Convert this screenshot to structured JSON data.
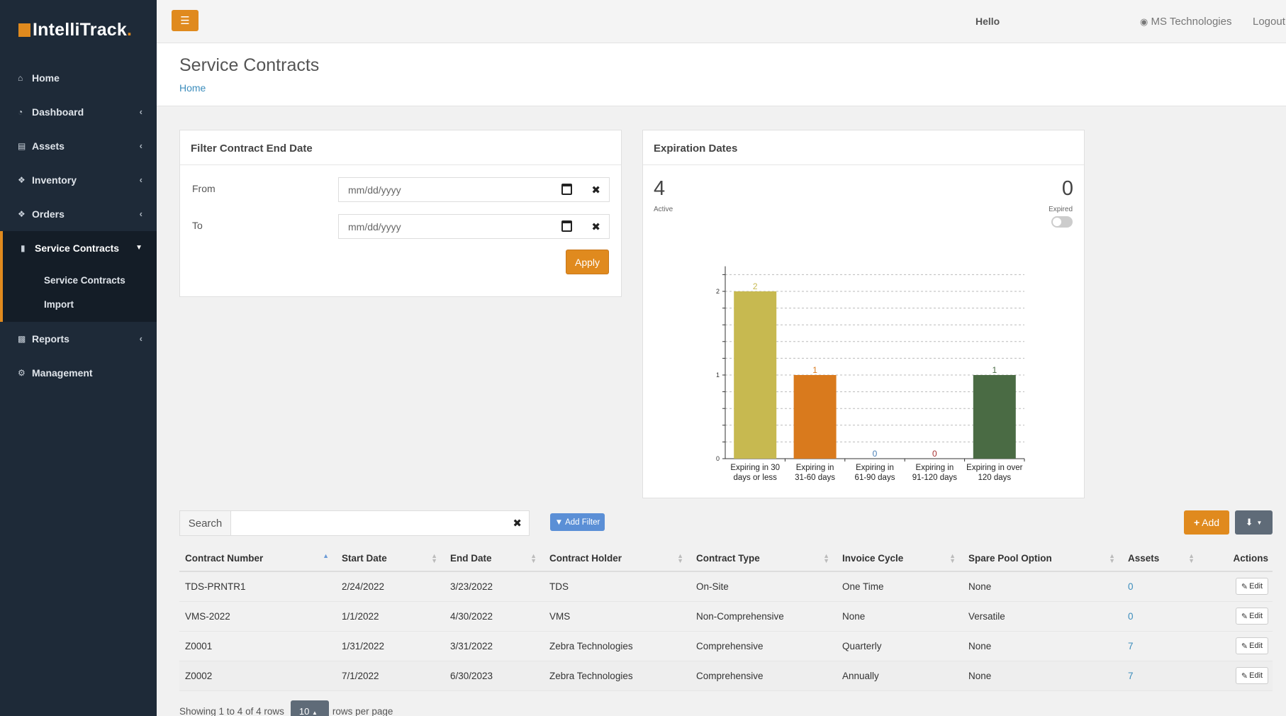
{
  "app": {
    "logo_text": "IntelliTrack",
    "logo_suffix": "."
  },
  "sidebar": {
    "items": [
      {
        "label": "Home",
        "icon": "home-icon",
        "has_chevron": false
      },
      {
        "label": "Dashboard",
        "icon": "dashboard-icon",
        "has_chevron": true
      },
      {
        "label": "Assets",
        "icon": "laptop-icon",
        "has_chevron": true
      },
      {
        "label": "Inventory",
        "icon": "cubes-icon",
        "has_chevron": true
      },
      {
        "label": "Orders",
        "icon": "cubes-icon",
        "has_chevron": true
      },
      {
        "label": "Service Contracts",
        "icon": "book-icon",
        "has_chevron": true,
        "active": true
      },
      {
        "label": "Reports",
        "icon": "bar-chart-icon",
        "has_chevron": true
      },
      {
        "label": "Management",
        "icon": "cogs-icon",
        "has_chevron": false
      }
    ],
    "subitems": [
      {
        "label": "Service Contracts"
      },
      {
        "label": "Import"
      }
    ]
  },
  "topbar": {
    "hello": "Hello",
    "company": "MS Technologies",
    "logout": "Logout"
  },
  "header": {
    "title": "Service Contracts",
    "breadcrumb": "Home"
  },
  "filter": {
    "title": "Filter Contract End Date",
    "from_label": "From",
    "to_label": "To",
    "from_value": "mm/dd/yyyy",
    "to_value": "mm/dd/yyyy",
    "apply_label": "Apply"
  },
  "expiration": {
    "title": "Expiration Dates",
    "active_count": "4",
    "active_label": "Active",
    "expired_count": "0",
    "expired_label": "Expired",
    "expired_toggle_on": false
  },
  "chart_data": {
    "type": "bar",
    "categories": [
      [
        "Expiring in 30",
        "days or less"
      ],
      [
        "Expiring in",
        "31-60 days"
      ],
      [
        "Expiring in",
        "61-90 days"
      ],
      [
        "Expiring in",
        "91-120 days"
      ],
      [
        "Expiring in over",
        "120 days"
      ]
    ],
    "values": [
      2,
      1,
      0,
      0,
      1
    ],
    "colors": [
      "#c7b950",
      "#d97a1d",
      "#4a7fb5",
      "#a83232",
      "#4a6b44"
    ],
    "yticks": [
      0,
      1,
      2
    ],
    "ylim": [
      0,
      2.3
    ],
    "grid": true
  },
  "toolbar": {
    "search_label": "Search",
    "search_value": "",
    "add_filter_label": "Add Filter",
    "add_label": "Add"
  },
  "table": {
    "columns": [
      "Contract Number",
      "Start Date",
      "End Date",
      "Contract Holder",
      "Contract Type",
      "Invoice Cycle",
      "Spare Pool Option",
      "Assets",
      "Actions"
    ],
    "rows": [
      {
        "contract_number": "TDS-PRNTR1",
        "start": "2/24/2022",
        "end": "3/23/2022",
        "holder": "TDS",
        "type": "On-Site",
        "cycle": "One Time",
        "spare": "None",
        "assets": "0"
      },
      {
        "contract_number": "VMS-2022",
        "start": "1/1/2022",
        "end": "4/30/2022",
        "holder": "VMS",
        "type": "Non-Comprehensive",
        "cycle": "None",
        "spare": "Versatile",
        "assets": "0"
      },
      {
        "contract_number": "Z0001",
        "start": "1/31/2022",
        "end": "3/31/2022",
        "holder": "Zebra Technologies",
        "type": "Comprehensive",
        "cycle": "Quarterly",
        "spare": "None",
        "assets": "7"
      },
      {
        "contract_number": "Z0002",
        "start": "7/1/2022",
        "end": "6/30/2023",
        "holder": "Zebra Technologies",
        "type": "Comprehensive",
        "cycle": "Annually",
        "spare": "None",
        "assets": "7"
      }
    ],
    "edit_label": "Edit"
  },
  "pager": {
    "showing": "Showing 1 to 4 of 4 rows",
    "rows_per_page_value": "10",
    "rows_per_page_label": "rows per page"
  }
}
